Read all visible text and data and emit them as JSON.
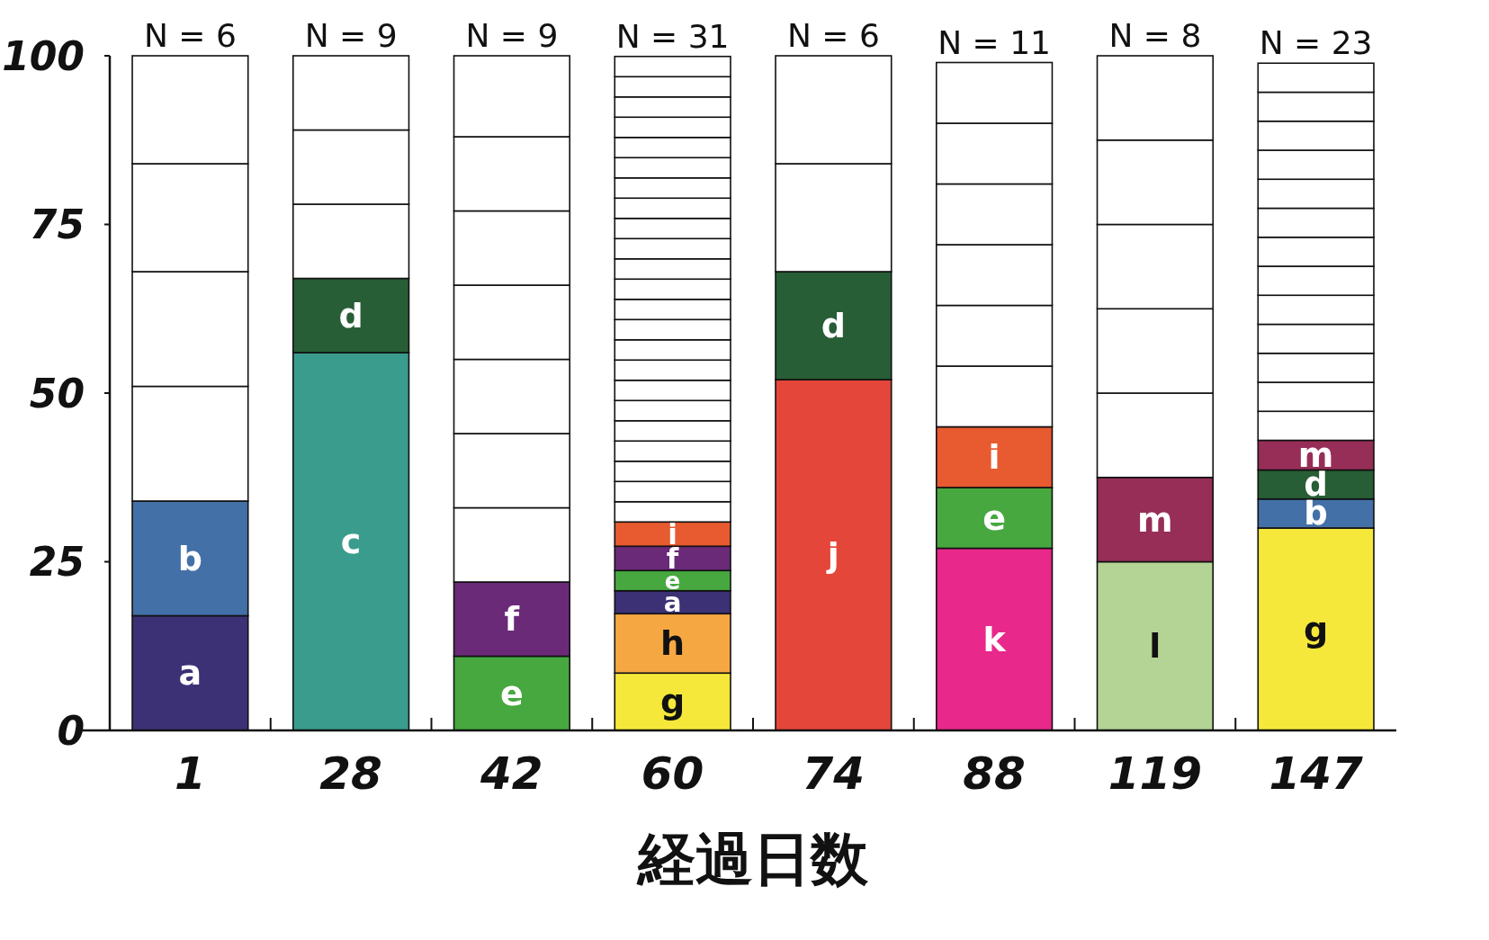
{
  "chart_data": {
    "type": "bar",
    "stacked": true,
    "xlabel": "経過日数",
    "categories": [
      "1",
      "28",
      "42",
      "60",
      "74",
      "88",
      "119",
      "147"
    ],
    "ylim": [
      0,
      100
    ],
    "yticks": [
      0,
      25,
      50,
      75,
      100
    ],
    "series": [
      {
        "values": [
          17,
          56,
          11,
          8.5,
          52,
          27,
          25,
          30
        ],
        "colors": [
          "#3c3175",
          "#3a9c8c",
          "#47a83f",
          "#f5e83a",
          "#e5463a",
          "#e8288a",
          "#b3d494",
          "#f5e83a"
        ],
        "value_labels": [
          "a",
          "c",
          "e",
          "g",
          "j",
          "k",
          "l",
          "g"
        ]
      },
      {
        "values": [
          17,
          11,
          11,
          8.8,
          16,
          9,
          12.5,
          4.3
        ],
        "colors": [
          "#4470a8",
          "#275e36",
          "#6a2a78",
          "#f5a842",
          "#275e36",
          "#47a83f",
          "#972e58",
          "#4470a8"
        ],
        "value_labels": [
          "b",
          "d",
          "f",
          "h",
          "d",
          "e",
          "m",
          "b"
        ]
      },
      {
        "values": [
          17,
          11,
          11,
          3.4,
          16,
          9,
          12.5,
          4.3
        ],
        "colors": [
          "#ffffff",
          "#ffffff",
          "#ffffff",
          "#3c3175",
          "#ffffff",
          "#e85a30",
          "#ffffff",
          "#275e36"
        ],
        "value_labels": [
          null,
          null,
          null,
          "a",
          null,
          "i",
          null,
          "d"
        ]
      },
      {
        "values": [
          17,
          11,
          11,
          3,
          16,
          9,
          12.5,
          4.4
        ],
        "colors": [
          "#ffffff",
          "#ffffff",
          "#ffffff",
          "#47a83f",
          "#ffffff",
          "#ffffff",
          "#ffffff",
          "#972e58"
        ],
        "value_labels": [
          null,
          null,
          null,
          "e",
          null,
          null,
          null,
          "m"
        ]
      },
      {
        "values": [
          16,
          11,
          11,
          3.6,
          null,
          9,
          12.5,
          4.3
        ],
        "colors": [
          "#ffffff",
          "#ffffff",
          "#ffffff",
          "#6a2a78",
          null,
          "#ffffff",
          "#ffffff",
          "#ffffff"
        ],
        "value_labels": [
          null,
          null,
          null,
          "f",
          null,
          null,
          null,
          null
        ]
      },
      {
        "values": [
          16,
          null,
          11,
          3.6,
          null,
          9,
          12.5,
          4.3
        ],
        "colors": [
          "#ffffff",
          null,
          "#ffffff",
          "#e85a30",
          null,
          "#ffffff",
          "#ffffff",
          "#ffffff"
        ],
        "value_labels": [
          null,
          null,
          null,
          "i",
          null,
          null,
          null,
          null
        ]
      },
      {
        "values": [
          null,
          null,
          11,
          3,
          null,
          9,
          12.5,
          4.3
        ],
        "colors": [
          null,
          null,
          "#ffffff",
          "#ffffff",
          null,
          "#ffffff",
          "#ffffff",
          "#ffffff"
        ]
      },
      {
        "values": [
          null,
          null,
          11,
          3,
          null,
          9,
          null,
          4.3
        ],
        "colors": [
          null,
          null,
          "#ffffff",
          "#ffffff",
          null,
          "#ffffff",
          null,
          "#ffffff"
        ]
      },
      {
        "values": [
          null,
          null,
          12,
          3,
          null,
          9,
          null,
          4.3
        ],
        "colors": [
          null,
          null,
          "#ffffff",
          "#ffffff",
          null,
          "#ffffff",
          null,
          "#ffffff"
        ]
      },
      {
        "values": [
          null,
          null,
          null,
          3,
          null,
          null,
          null,
          4.3
        ],
        "colors": [
          null,
          null,
          null,
          "#ffffff",
          null,
          null,
          null,
          "#ffffff"
        ]
      },
      {
        "values": [
          null,
          null,
          null,
          3,
          null,
          null,
          null,
          4.3
        ],
        "colors": [
          null,
          null,
          null,
          "#ffffff",
          null,
          null,
          null,
          "#ffffff"
        ]
      },
      {
        "values": [
          null,
          null,
          null,
          3,
          null,
          null,
          null,
          4.3
        ],
        "colors": [
          null,
          null,
          null,
          "#ffffff",
          null,
          null,
          null,
          "#ffffff"
        ]
      },
      {
        "values": [
          null,
          null,
          null,
          3,
          null,
          null,
          null,
          4.3
        ],
        "colors": [
          null,
          null,
          null,
          "#ffffff",
          null,
          null,
          null,
          "#ffffff"
        ]
      },
      {
        "values": [
          null,
          null,
          null,
          3,
          null,
          null,
          null,
          4.3
        ],
        "colors": [
          null,
          null,
          null,
          "#ffffff",
          null,
          null,
          null,
          "#ffffff"
        ]
      },
      {
        "values": [
          null,
          null,
          null,
          3,
          null,
          null,
          null,
          4.3
        ],
        "colors": [
          null,
          null,
          null,
          "#ffffff",
          null,
          null,
          null,
          "#ffffff"
        ]
      },
      {
        "values": [
          null,
          null,
          null,
          3,
          null,
          null,
          null,
          4.3
        ],
        "colors": [
          null,
          null,
          null,
          "#ffffff",
          null,
          null,
          null,
          "#ffffff"
        ]
      },
      {
        "values": [
          null,
          null,
          null,
          3,
          null,
          null,
          null,
          4.3
        ],
        "colors": [
          null,
          null,
          null,
          "#ffffff",
          null,
          null,
          null,
          "#ffffff"
        ]
      },
      {
        "values": [
          null,
          null,
          null,
          3,
          null,
          null,
          null,
          null
        ],
        "colors": [
          null,
          null,
          null,
          "#ffffff",
          null,
          null,
          null,
          null
        ]
      },
      {
        "values": [
          null,
          null,
          null,
          3,
          null,
          null,
          null,
          null
        ],
        "colors": [
          null,
          null,
          null,
          "#ffffff",
          null,
          null,
          null,
          null
        ]
      },
      {
        "values": [
          null,
          null,
          null,
          3,
          null,
          null,
          null,
          null
        ],
        "colors": [
          null,
          null,
          null,
          "#ffffff",
          null,
          null,
          null,
          null
        ]
      },
      {
        "values": [
          null,
          null,
          null,
          3,
          null,
          null,
          null,
          null
        ],
        "colors": [
          null,
          null,
          null,
          "#ffffff",
          null,
          null,
          null,
          null
        ]
      },
      {
        "values": [
          null,
          null,
          null,
          3,
          null,
          null,
          null,
          null
        ],
        "colors": [
          null,
          null,
          null,
          "#ffffff",
          null,
          null,
          null,
          null
        ]
      },
      {
        "values": [
          null,
          null,
          null,
          3,
          null,
          null,
          null,
          null
        ],
        "colors": [
          null,
          null,
          null,
          "#ffffff",
          null,
          null,
          null,
          null
        ]
      },
      {
        "values": [
          null,
          null,
          null,
          3,
          null,
          null,
          null,
          null
        ],
        "colors": [
          null,
          null,
          null,
          "#ffffff",
          null,
          null,
          null,
          null
        ]
      },
      {
        "values": [
          null,
          null,
          null,
          3,
          null,
          null,
          null,
          null
        ],
        "colors": [
          null,
          null,
          null,
          "#ffffff",
          null,
          null,
          null,
          null
        ]
      },
      {
        "values": [
          null,
          null,
          null,
          3,
          null,
          null,
          null,
          null
        ],
        "colors": [
          null,
          null,
          null,
          "#ffffff",
          null,
          null,
          null,
          null
        ]
      },
      {
        "values": [
          null,
          null,
          null,
          3,
          null,
          null,
          null,
          null
        ],
        "colors": [
          null,
          null,
          null,
          "#ffffff",
          null,
          null,
          null,
          null
        ]
      },
      {
        "values": [
          null,
          null,
          null,
          3,
          null,
          null,
          null,
          null
        ],
        "colors": [
          null,
          null,
          null,
          "#ffffff",
          null,
          null,
          null,
          null
        ]
      },
      {
        "values": [
          null,
          null,
          null,
          3,
          null,
          null,
          null,
          null
        ],
        "colors": [
          null,
          null,
          null,
          "#ffffff",
          null,
          null,
          null,
          null
        ]
      }
    ],
    "annotations": [
      {
        "text": "N = 6",
        "x": "1",
        "y": 100
      },
      {
        "text": "N = 9",
        "x": "28",
        "y": 100
      },
      {
        "text": "N = 9",
        "x": "42",
        "y": 100
      },
      {
        "text": "N = 31",
        "x": "60",
        "y": 99.9
      },
      {
        "text": "N = 6",
        "x": "74",
        "y": 100
      },
      {
        "text": "N = 11",
        "x": "88",
        "y": 99
      },
      {
        "text": "N = 8",
        "x": "119",
        "y": 100
      },
      {
        "text": "N = 23",
        "x": "147",
        "y": 98.9
      }
    ]
  }
}
